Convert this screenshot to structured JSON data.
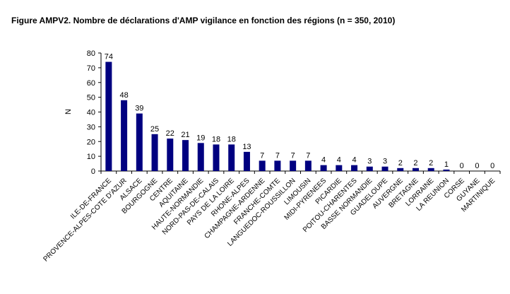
{
  "figure": {
    "title": "Figure AMPV2. Nombre de déclarations d'AMP vigilance en fonction des régions (n = 350, 2010)"
  },
  "colors": {
    "bar": "#000080",
    "axis": "#000000",
    "text": "#000000"
  },
  "chart_data": {
    "type": "bar",
    "title": "Figure AMPV2. Nombre de déclarations d'AMP vigilance en fonction des régions (n = 350, 2010)",
    "xlabel": "",
    "ylabel": "N",
    "ylim": [
      0,
      80
    ],
    "yticks": [
      0,
      10,
      20,
      30,
      40,
      50,
      60,
      70,
      80
    ],
    "grid": false,
    "legend": "none",
    "categories": [
      "ILE-DE-FRANCE",
      "PROVENCE-ALPES-COTE D'AZUR",
      "ALSACE",
      "BOURGOGNE",
      "CENTRE",
      "AQUITAINE",
      "HAUTE-NORMANDIE",
      "NORD-PAS-DE-CALAIS",
      "PAYS DE LA LOIRE",
      "RHONE-ALPES",
      "CHAMPAGNE-ARDENNE",
      "FRANCHE-COMTE",
      "LANGUEDOC-ROUSSILLON",
      "LIMOUSIN",
      "MIDI-PYRENEES",
      "PICARDIE",
      "POITOU-CHARENTES",
      "BASSE NORMANDIE",
      "GUADELOUPE",
      "AUVERGNE",
      "BRETAGNE",
      "LORRAINE",
      "LA REUNION",
      "CORSE",
      "GUYANE",
      "MARTINIQUE"
    ],
    "values": [
      74,
      48,
      39,
      25,
      22,
      21,
      19,
      18,
      18,
      13,
      7,
      7,
      7,
      7,
      4,
      4,
      4,
      3,
      3,
      2,
      2,
      2,
      1,
      0,
      0,
      0
    ]
  }
}
